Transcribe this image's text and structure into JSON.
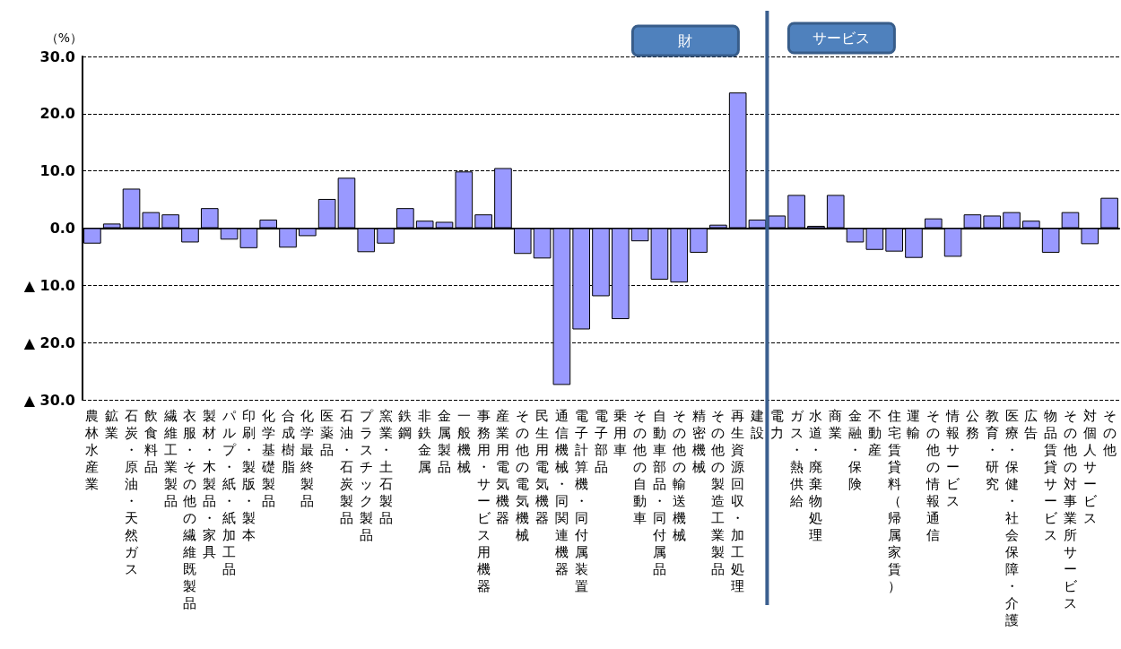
{
  "chart_data": {
    "type": "bar",
    "ylabel": "（%）",
    "categories": [
      "農林水産業",
      "鉱業",
      "石炭・原油・天然ガス",
      "飲食料品",
      "繊維工業製品",
      "衣服・その他の繊維既製品",
      "製材・木製品・家具",
      "パルプ・紙・紙加工品",
      "印刷・製版・製本",
      "化学基礎製品",
      "合成樹脂",
      "化学最終製品",
      "医薬品",
      "石油・石炭製品",
      "プラスチック製品",
      "窯業・土石製品",
      "鉄鋼",
      "非鉄金属",
      "金属製品",
      "一般機械",
      "事務用・サービス用機器",
      "産業用電気機器",
      "その他の電気機械",
      "民生用電気機器",
      "通信機械・同関連機器",
      "電子計算機・同付属装置",
      "電子部品",
      "乗用車",
      "その他の自動車",
      "自動車部品・同付属品",
      "その他の輸送機械",
      "精密機械",
      "その他の製造工業製品",
      "再生資源回収・加工処理",
      "建設",
      "電力",
      "ガス・熱供給",
      "水道・廃棄物処理",
      "商業",
      "金融・保険",
      "不動産",
      "住宅賃貸料（帰属家賃）",
      "運輸",
      "その他の情報通信",
      "情報サービス",
      "公務",
      "教育・研究",
      "医療・保健・社会保障・介護",
      "広告",
      "物品賃貸サービス",
      "その他の対事業所サービス",
      "対個人サービス",
      "その他"
    ],
    "values": [
      -2.7,
      0.8,
      6.9,
      2.8,
      2.4,
      -2.5,
      3.5,
      -2.0,
      -3.5,
      1.5,
      -3.4,
      -1.4,
      5.1,
      8.8,
      -4.2,
      -2.7,
      3.5,
      1.3,
      1.1,
      9.9,
      2.4,
      10.5,
      -4.5,
      -5.3,
      -27.4,
      -17.7,
      -11.9,
      -15.9,
      -2.3,
      -9.0,
      -9.5,
      -4.3,
      0.6,
      23.7,
      1.5,
      2.2,
      5.8,
      0.4,
      5.8,
      -2.5,
      -3.8,
      -4.1,
      -5.2,
      1.7,
      -5.0,
      2.4,
      2.2,
      2.8,
      1.3,
      -4.3,
      2.8,
      -2.8,
      5.3
    ],
    "color": "#9999ff",
    "ylim": [
      -30,
      30
    ],
    "yticks": [
      {
        "value": -30,
        "label": "▲ 30.0"
      },
      {
        "value": -20,
        "label": "▲ 20.0"
      },
      {
        "value": -10,
        "label": "▲ 10.0"
      },
      {
        "value": 0,
        "label": "0.0"
      },
      {
        "value": 10,
        "label": "10.0"
      },
      {
        "value": 20,
        "label": "20.0"
      },
      {
        "value": 30,
        "label": "30.0"
      }
    ],
    "grid": "y",
    "ref_lines": [
      {
        "axis": "x",
        "value": "電力",
        "color": "#3b5f8f"
      }
    ],
    "annotations": [
      "財",
      "サービス"
    ]
  }
}
